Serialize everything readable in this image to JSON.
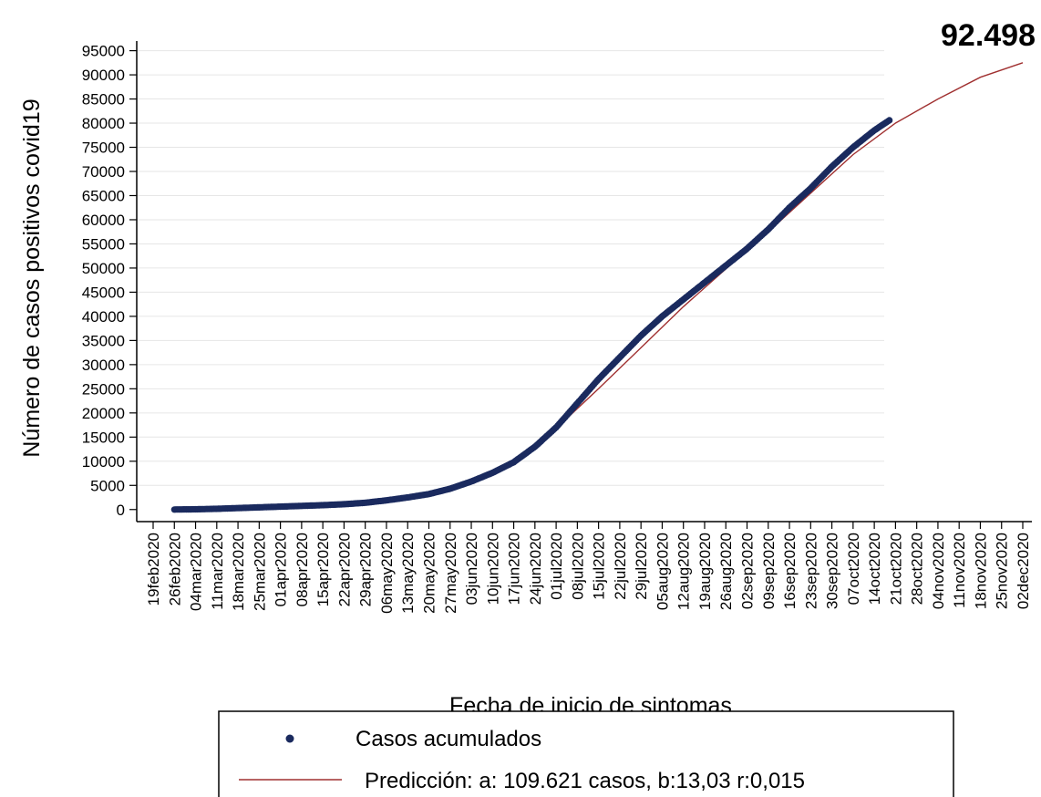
{
  "chart_data": {
    "type": "scatter",
    "title": "",
    "xlabel": "Fecha de inicio de sintomas",
    "ylabel": "Número de casos positivos covid19",
    "annotation": "92.498",
    "x_start": "19feb2020",
    "x_end": "02dec2020",
    "ylim": [
      -2500,
      97000
    ],
    "y_ticks": [
      "95000",
      "90000",
      "85000",
      "80000",
      "75000",
      "70000",
      "65000",
      "60000",
      "55000",
      "50000",
      "45000",
      "40000",
      "35000",
      "30000",
      "25000",
      "20000",
      "15000",
      "10000",
      "5000",
      "0"
    ],
    "x_ticks": [
      "19feb2020",
      "26feb2020",
      "04mar2020",
      "11mar2020",
      "18mar2020",
      "25mar2020",
      "01apr2020",
      "08apr2020",
      "15apr2020",
      "22apr2020",
      "29apr2020",
      "06may2020",
      "13may2020",
      "20may2020",
      "27may2020",
      "03jun2020",
      "10jun2020",
      "17jun2020",
      "24jun2020",
      "01jul2020",
      "08jul2020",
      "15jul2020",
      "22jul2020",
      "29jul2020",
      "05aug2020",
      "12aug2020",
      "19aug2020",
      "26aug2020",
      "02sep2020",
      "09sep2020",
      "16sep2020",
      "23sep2020",
      "30sep2020",
      "07oct2020",
      "14oct2020",
      "21oct2020",
      "28oct2020",
      "04nov2020",
      "11nov2020",
      "18nov2020",
      "25nov2020",
      "02dec2020"
    ],
    "grid": true,
    "legend_position": "bottom",
    "series": [
      {
        "name": "Casos acumulados",
        "kind": "scatter",
        "color": "#1a2a5e",
        "points": [
          [
            "26feb2020",
            0
          ],
          [
            "04mar2020",
            50
          ],
          [
            "11mar2020",
            150
          ],
          [
            "18mar2020",
            300
          ],
          [
            "25mar2020",
            450
          ],
          [
            "01apr2020",
            600
          ],
          [
            "08apr2020",
            750
          ],
          [
            "15apr2020",
            900
          ],
          [
            "22apr2020",
            1100
          ],
          [
            "29apr2020",
            1400
          ],
          [
            "06may2020",
            1900
          ],
          [
            "13may2020",
            2500
          ],
          [
            "20may2020",
            3200
          ],
          [
            "27may2020",
            4300
          ],
          [
            "03jun2020",
            5800
          ],
          [
            "10jun2020",
            7600
          ],
          [
            "17jun2020",
            9800
          ],
          [
            "24jun2020",
            13000
          ],
          [
            "01jul2020",
            17000
          ],
          [
            "08jul2020",
            22000
          ],
          [
            "15jul2020",
            27000
          ],
          [
            "22jul2020",
            31500
          ],
          [
            "29jul2020",
            36000
          ],
          [
            "05aug2020",
            40000
          ],
          [
            "12aug2020",
            43500
          ],
          [
            "19aug2020",
            47000
          ],
          [
            "26aug2020",
            50500
          ],
          [
            "02sep2020",
            54000
          ],
          [
            "09sep2020",
            58000
          ],
          [
            "16sep2020",
            62500
          ],
          [
            "23sep2020",
            66500
          ],
          [
            "30sep2020",
            71000
          ],
          [
            "07oct2020",
            75000
          ],
          [
            "14oct2020",
            78500
          ],
          [
            "19oct2020",
            80600
          ]
        ]
      },
      {
        "name": "Predicción: a: 109.621 casos, b:13,03 r:0,015",
        "kind": "line",
        "color": "#a03030",
        "points": [
          [
            "26feb2020",
            0
          ],
          [
            "11mar2020",
            120
          ],
          [
            "25mar2020",
            350
          ],
          [
            "08apr2020",
            650
          ],
          [
            "22apr2020",
            1000
          ],
          [
            "06may2020",
            1600
          ],
          [
            "20may2020",
            2900
          ],
          [
            "03jun2020",
            5600
          ],
          [
            "17jun2020",
            10200
          ],
          [
            "01jul2020",
            16800
          ],
          [
            "15jul2020",
            25000
          ],
          [
            "29jul2020",
            33500
          ],
          [
            "12aug2020",
            42000
          ],
          [
            "26aug2020",
            49800
          ],
          [
            "09sep2020",
            57500
          ],
          [
            "23sep2020",
            65500
          ],
          [
            "07oct2020",
            73500
          ],
          [
            "21oct2020",
            80000
          ],
          [
            "04nov2020",
            85000
          ],
          [
            "18nov2020",
            89500
          ],
          [
            "02dec2020",
            92498
          ]
        ]
      }
    ]
  }
}
